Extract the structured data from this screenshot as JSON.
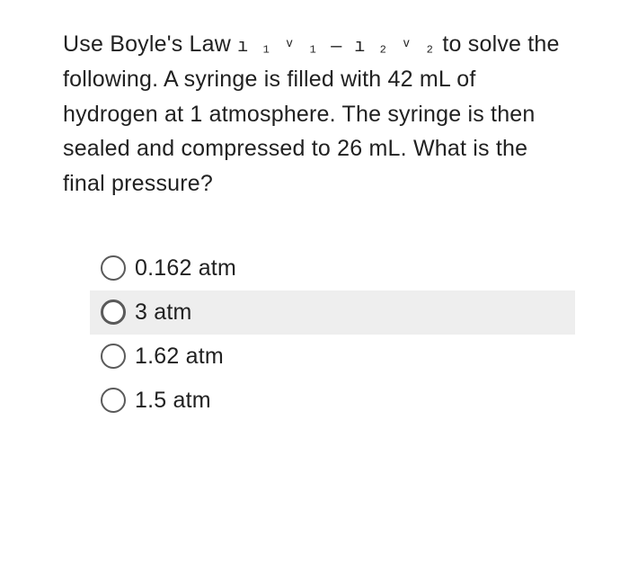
{
  "question": {
    "prefix": "Use Boyle's Law ",
    "formula": "ı ₁ ᵛ ₁  —  ı ₂ ᵛ ₂",
    "suffix": " to solve the following. A syringe is filled with 42 mL of hydrogen at 1 atmosphere. The syringe is then sealed and compressed to 26 mL. What is the final pressure?"
  },
  "options": [
    {
      "label": "0.162 atm",
      "highlighted": false
    },
    {
      "label": "3 atm",
      "highlighted": true
    },
    {
      "label": "1.62 atm",
      "highlighted": false
    },
    {
      "label": "1.5 atm",
      "highlighted": false
    }
  ],
  "colors": {
    "background": "#ffffff",
    "text": "#212121",
    "highlight_bg": "#eeeeee",
    "radio_border": "#5a5a5a"
  },
  "typography": {
    "question_fontsize": 25,
    "option_fontsize": 25,
    "line_height": 1.55
  }
}
